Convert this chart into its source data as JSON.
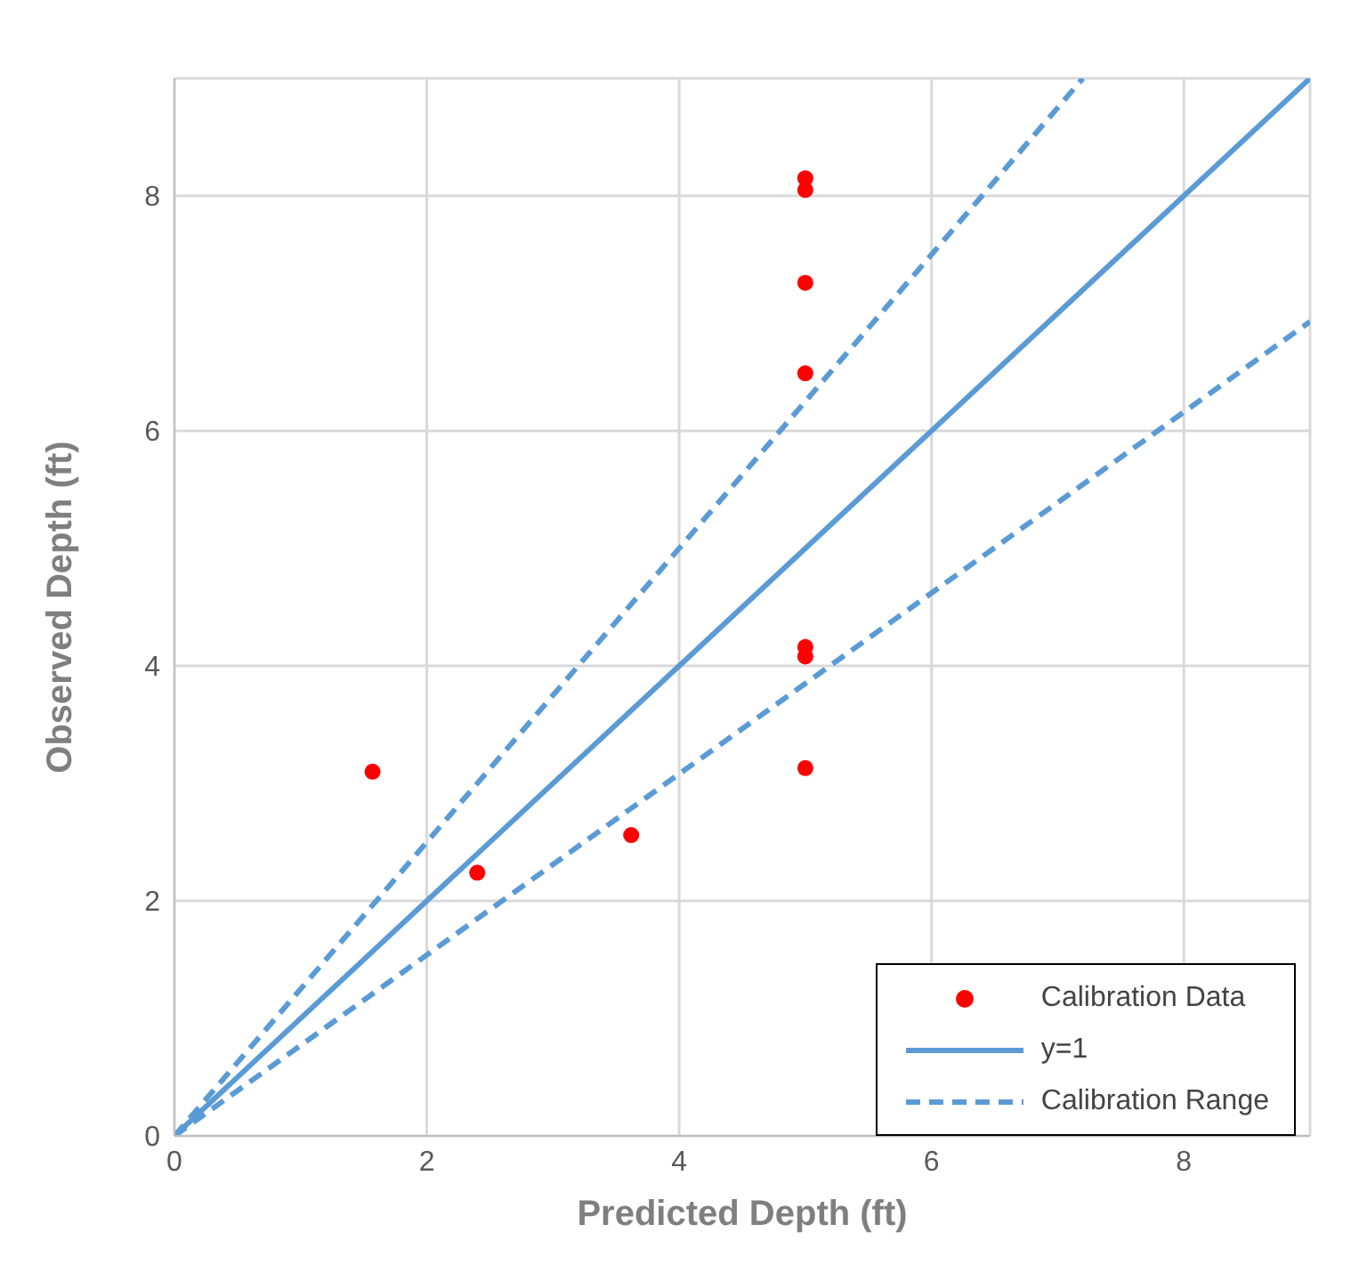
{
  "chart_data": {
    "type": "scatter",
    "xlabel": "Predicted Depth (ft)",
    "ylabel": "Observed  Depth (ft)",
    "xlim": [
      0,
      9
    ],
    "ylim": [
      0,
      9
    ],
    "xticks": [
      0,
      2,
      4,
      6,
      8
    ],
    "yticks": [
      0,
      2,
      4,
      6,
      8
    ],
    "grid": true,
    "legend": "bottom right",
    "series": [
      {
        "name": "Calibration Data",
        "color": "#ff0000",
        "marker": "circle",
        "x": [
          1.57,
          2.4,
          3.62,
          5,
          5,
          5,
          5,
          5,
          5,
          5
        ],
        "values": [
          3.1,
          2.24,
          2.56,
          8.15,
          8.05,
          7.26,
          6.49,
          4.16,
          4.08,
          3.13
        ]
      },
      {
        "name": "y=1",
        "type": "line",
        "color": "#5b9bd5",
        "line_style": "solid",
        "marker": "none",
        "x": [
          0,
          9
        ],
        "values": [
          0,
          9
        ]
      },
      {
        "name": "Calibration Range",
        "type": "line",
        "color": "#5b9bd5",
        "line_style": "dashed",
        "marker": "none",
        "x": [
          0,
          7.2
        ],
        "values": [
          0,
          9
        ]
      },
      {
        "type": "line",
        "color": "#5b9bd5",
        "line_style": "dashed",
        "marker": "none",
        "x": [
          0,
          9
        ],
        "values": [
          0,
          6.93
        ]
      }
    ]
  }
}
